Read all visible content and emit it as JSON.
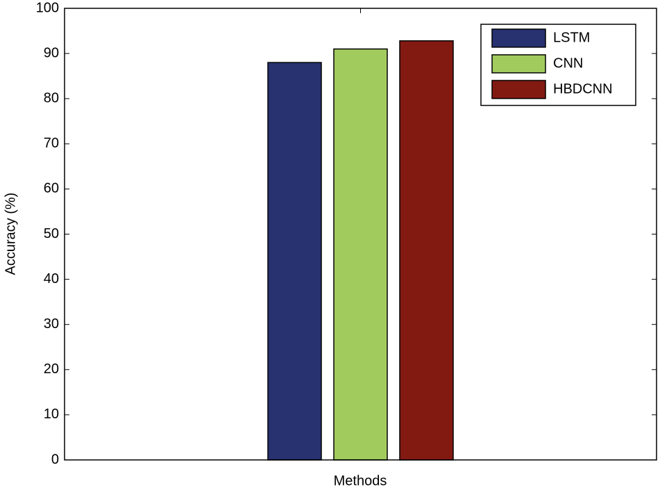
{
  "chart_data": {
    "type": "bar",
    "xlabel": "Methods",
    "ylabel": "Accuracy (%)",
    "categories": [
      null
    ],
    "series": [
      {
        "name": "LSTM",
        "color": "#283270",
        "values": [
          88
        ]
      },
      {
        "name": "CNN",
        "color": "#a2cb5e",
        "values": [
          91
        ]
      },
      {
        "name": "HBDCNN",
        "color": "#831a12",
        "values": [
          92.8
        ]
      }
    ],
    "ylim": [
      0,
      100
    ],
    "yticks": [
      0,
      10,
      20,
      30,
      40,
      50,
      60,
      70,
      80,
      90,
      100
    ],
    "grid": false,
    "legend": "top-right"
  }
}
